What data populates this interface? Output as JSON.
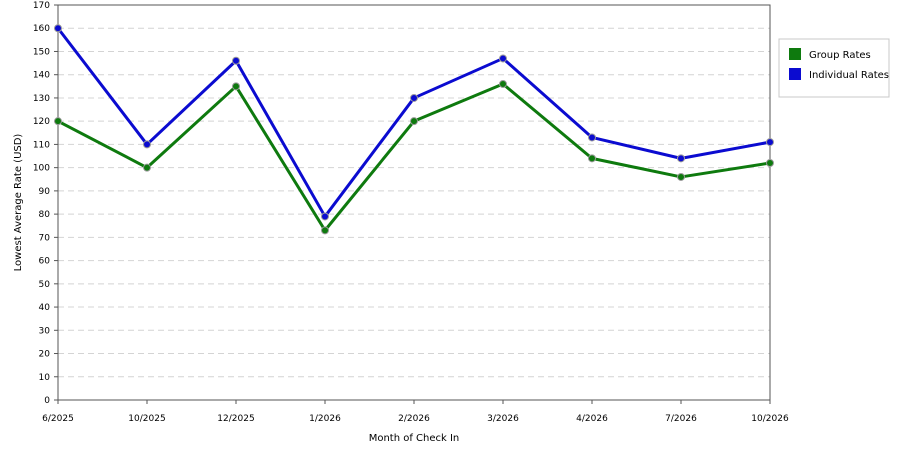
{
  "chart_data": {
    "type": "line",
    "categories": [
      "6/2025",
      "10/2025",
      "12/2025",
      "1/2026",
      "2/2026",
      "3/2026",
      "4/2026",
      "7/2026",
      "10/2026"
    ],
    "series": [
      {
        "name": "Group Rates",
        "color": "#0e7a0e",
        "values": [
          120,
          100,
          135,
          73,
          120,
          136,
          104,
          96,
          102
        ]
      },
      {
        "name": "Individual Rates",
        "color": "#0b0bd0",
        "values": [
          160,
          110,
          146,
          79,
          130,
          147,
          113,
          104,
          111
        ]
      }
    ],
    "xlabel": "Month of Check In",
    "ylabel": "Lowest Average Rate (USD)",
    "ylim": [
      0,
      170
    ],
    "ytick_step": 10,
    "grid": true,
    "legend_position": "top-right"
  }
}
